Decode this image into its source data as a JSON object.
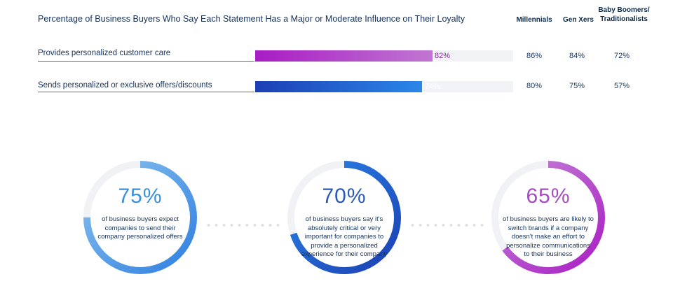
{
  "chart_data": [
    {
      "type": "bar",
      "title": "Percentage of Business Buyers Who Say Each Statement Has a Major or Moderate Influence on Their Loyalty",
      "columns": [
        "Millennials",
        "Gen Xers",
        "Baby Boomers/ Traditionalists"
      ],
      "rows": [
        {
          "label": "Provides personalized customer care",
          "value": 82,
          "value_label": "82%",
          "color": "#a91cc4",
          "breakdown": [
            "86%",
            "84%",
            "72%"
          ]
        },
        {
          "label": "Sends personalized or exclusive offers/discounts",
          "value": 74,
          "value_label": "74%",
          "color": "#1c3fb3",
          "breakdown": [
            "80%",
            "75%",
            "57%"
          ]
        }
      ],
      "xlim": [
        0,
        100
      ]
    },
    {
      "type": "pie",
      "stats": [
        {
          "value": 75,
          "label": "75%",
          "caption": "of business buyers expect companies to send their company personalized offers",
          "color_start": "#2f7fe0",
          "color_end": "#8cc3ee"
        },
        {
          "value": 70,
          "label": "70%",
          "caption": "of business buyers say it's absolutely critical or very important for companies to provide a personalized experience for their company",
          "color_start": "#1c3fb3",
          "color_end": "#2a87e8"
        },
        {
          "value": 65,
          "label": "65%",
          "caption": "of business buyers are likely to switch brands if a company doesn't make an effort to personalize communications to their business",
          "color_start": "#a91cc4",
          "color_end": "#c58ad6"
        }
      ]
    }
  ]
}
